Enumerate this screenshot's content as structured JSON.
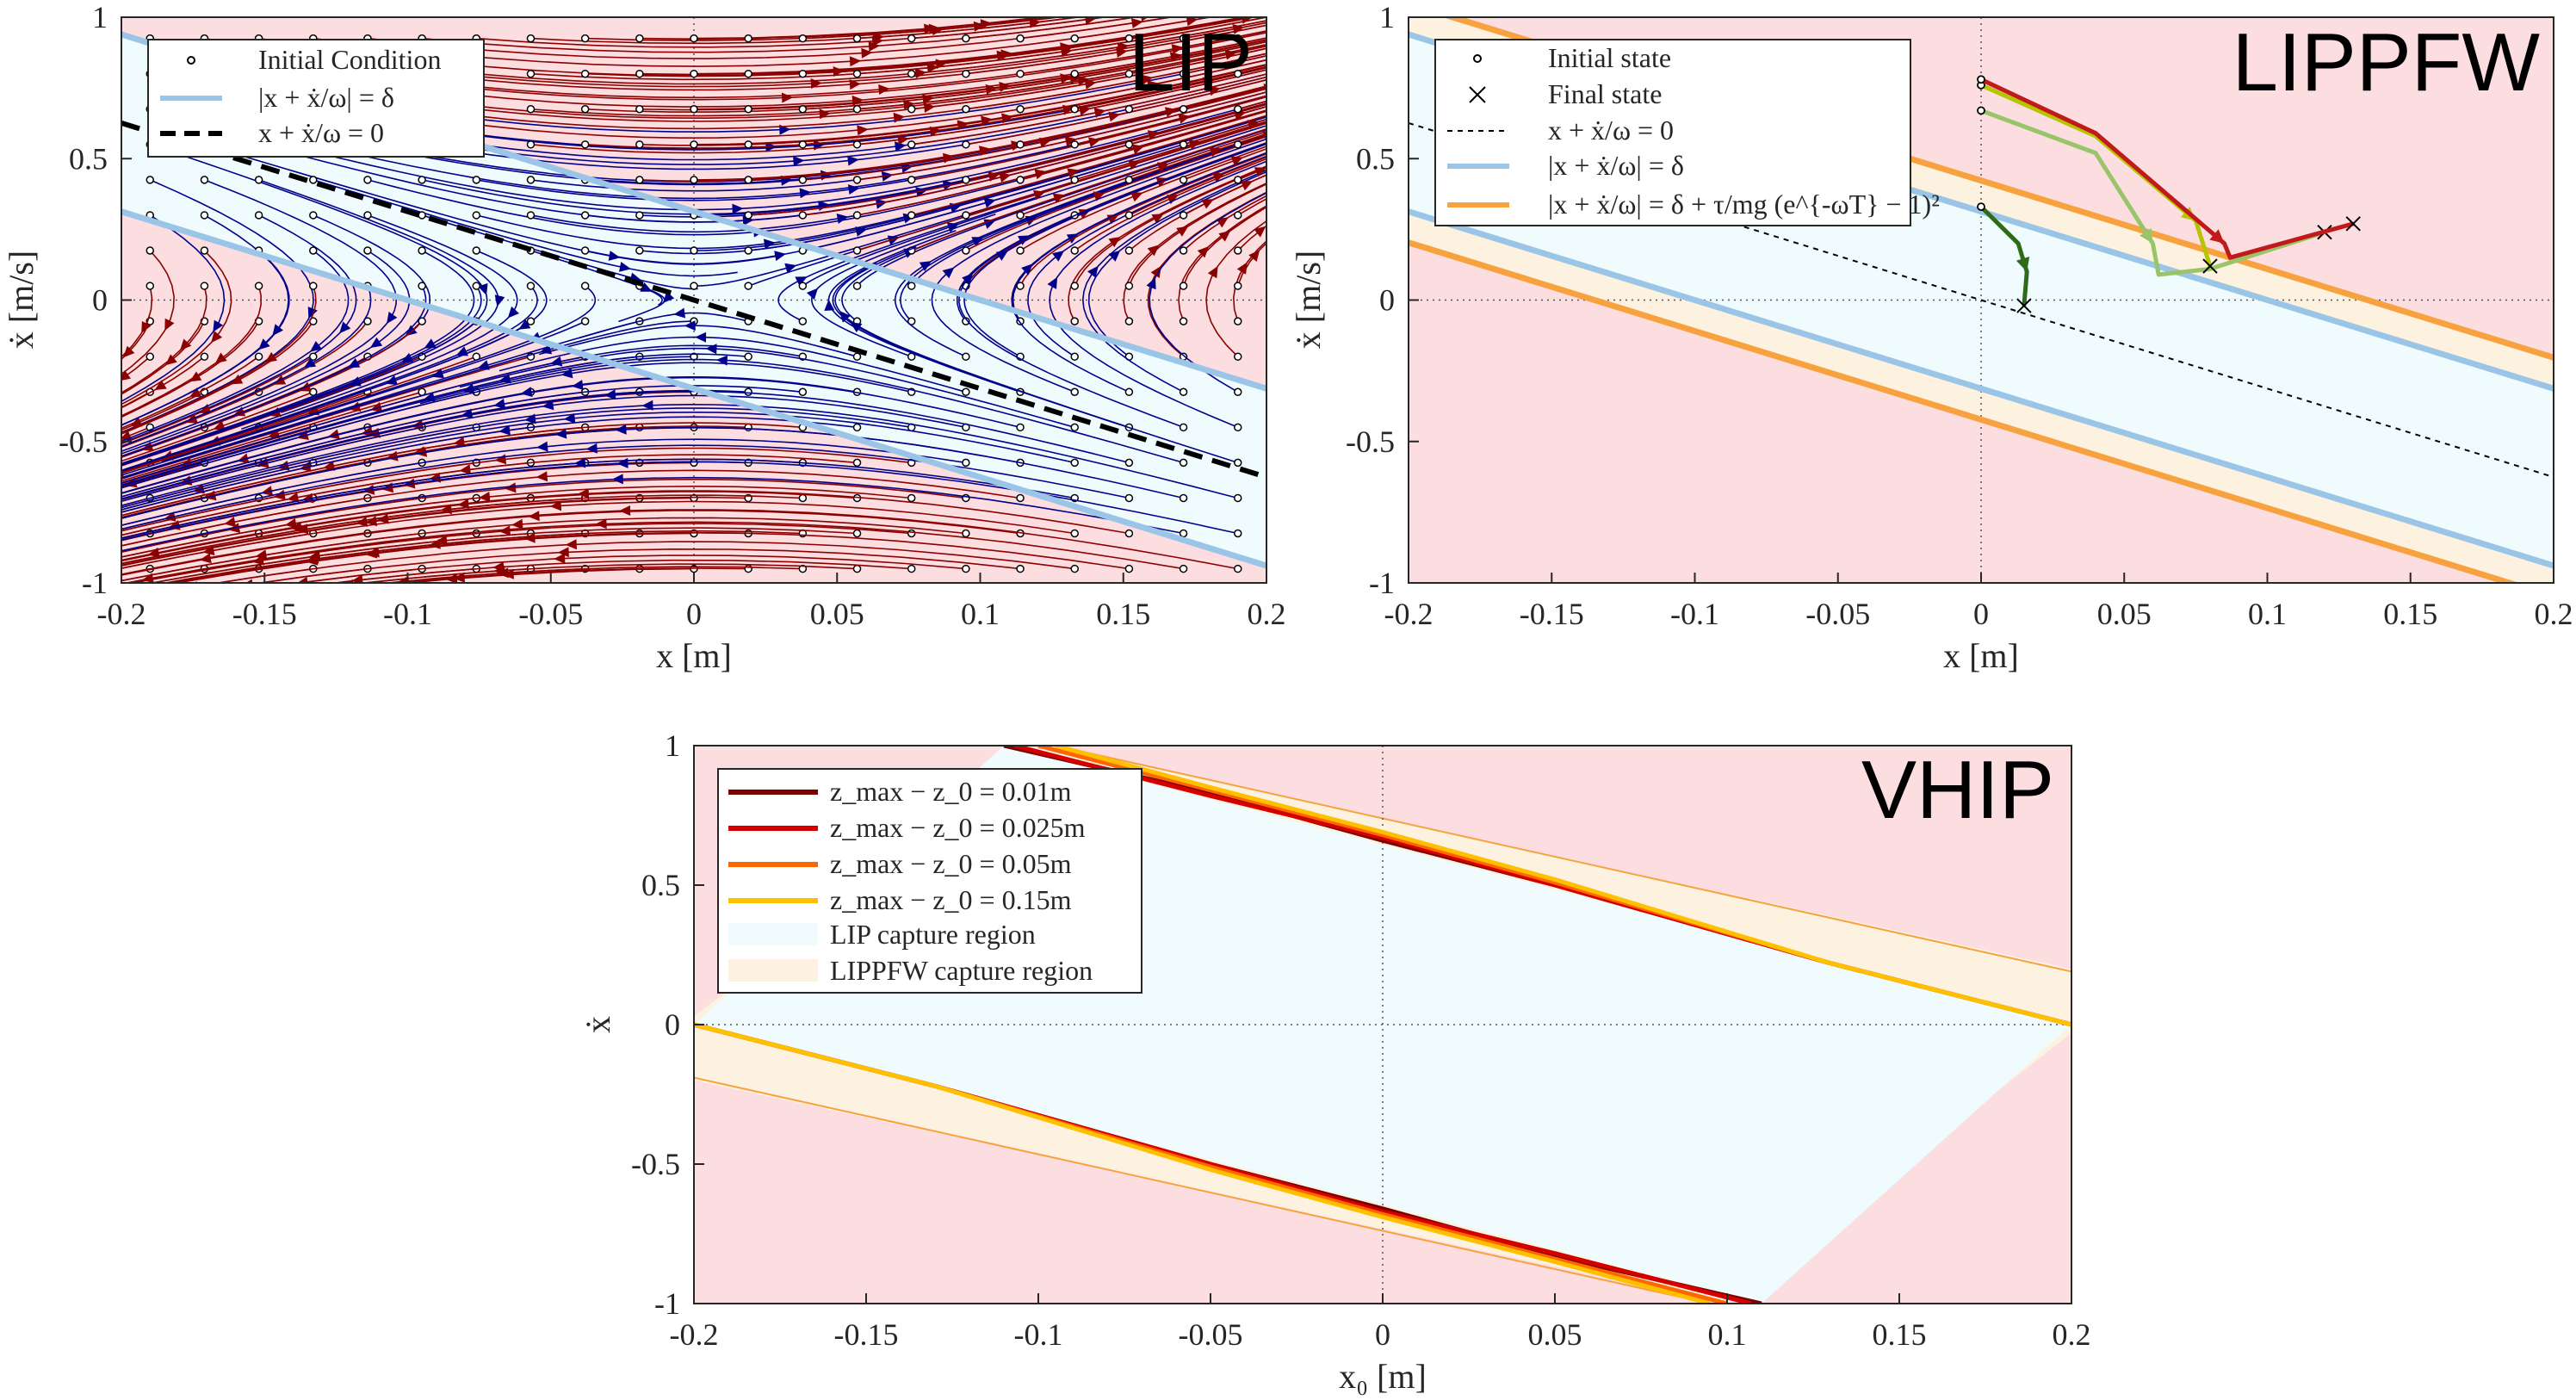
{
  "colors": {
    "capture_fill": "#f0fbfe",
    "unstable_fill": "#fcdde0",
    "lippfw_band": "#fdf1e0",
    "lip_boundary": "#9bc5e6",
    "lippfw_boundary": "#f7a13f",
    "stable_traj": "#00008b",
    "unstable_traj": "#8b0000",
    "dashed_line": "#000000",
    "traj_dark_green": "#2e6a1a",
    "traj_light_green": "#99c46a",
    "traj_olive": "#b7c400",
    "traj_red": "#c01a1a",
    "z_001": "#7b0000",
    "z_0025": "#d40000",
    "z_005": "#ff6600",
    "z_015": "#ffc000"
  },
  "chart_data": [
    {
      "name": "LIP",
      "type": "line",
      "title": "LIP",
      "xlabel": "x [m]",
      "ylabel": "ẋ [m/s]",
      "xlim": [
        -0.2,
        0.2
      ],
      "ylim": [
        -1,
        1
      ],
      "xticks": [
        "-0.2",
        "-0.15",
        "-0.1",
        "-0.05",
        "0",
        "0.05",
        "0.1",
        "0.15",
        "0.2"
      ],
      "yticks": [
        "-1",
        "-0.5",
        "0",
        "0.5",
        "1"
      ],
      "omega": 3.13,
      "delta": 0.1,
      "initial_conditions": {
        "x_min": -0.19,
        "x_max": 0.19,
        "x_step": 0.019,
        "y_min": -0.95,
        "y_max": 0.95,
        "y_step": 0.125
      },
      "legend": [
        {
          "label": "Initial Condition",
          "style": "marker-circle"
        },
        {
          "label": "|x + ẋ/ω| = δ",
          "style": "line-blue"
        },
        {
          "label": "x + ẋ/ω = 0",
          "style": "line-dashed"
        }
      ],
      "legend_position": "top-left",
      "grid": false
    },
    {
      "name": "LIPPFW",
      "type": "line",
      "title": "LIPPFW",
      "xlabel": "x [m]",
      "ylabel": "ẋ [m/s]",
      "xlim": [
        -0.2,
        0.2
      ],
      "ylim": [
        -1,
        1
      ],
      "xticks": [
        "-0.2",
        "-0.15",
        "-0.1",
        "-0.05",
        "0",
        "0.05",
        "0.1",
        "0.15",
        "0.2"
      ],
      "yticks": [
        "-1",
        "-0.5",
        "0",
        "0.5",
        "1"
      ],
      "omega": 3.13,
      "delta": 0.1,
      "band_extra": 0.035,
      "trajectories": [
        {
          "color_key": "traj_dark_green",
          "points": [
            [
              0,
              0.33
            ],
            [
              0.013,
              0.2
            ],
            [
              0.016,
              0.1
            ],
            [
              0.015,
              -0.02
            ]
          ],
          "final": [
            0.015,
            -0.02
          ]
        },
        {
          "color_key": "traj_light_green",
          "points": [
            [
              0,
              0.67
            ],
            [
              0.04,
              0.52
            ],
            [
              0.06,
              0.2
            ],
            [
              0.062,
              0.09
            ],
            [
              0.08,
              0.11
            ],
            [
              0.12,
              0.24
            ]
          ],
          "final": [
            0.12,
            0.24
          ]
        },
        {
          "color_key": "traj_olive",
          "points": [
            [
              0,
              0.76
            ],
            [
              0.04,
              0.58
            ],
            [
              0.075,
              0.28
            ],
            [
              0.08,
              0.12
            ]
          ],
          "final": [
            0.08,
            0.12
          ]
        },
        {
          "color_key": "traj_red",
          "points": [
            [
              0,
              0.78
            ],
            [
              0.04,
              0.59
            ],
            [
              0.085,
              0.2
            ],
            [
              0.087,
              0.15
            ],
            [
              0.13,
              0.27
            ]
          ],
          "final": [
            0.13,
            0.27
          ]
        }
      ],
      "legend": [
        {
          "label": "Initial state",
          "style": "marker-circle"
        },
        {
          "label": "Final state",
          "style": "marker-x"
        },
        {
          "label": "x + ẋ/ω = 0",
          "style": "line-dotted"
        },
        {
          "label": "|x + ẋ/ω| = δ",
          "style": "line-blue"
        },
        {
          "label": "|x + ẋ/ω| = δ + τ/mg (e^{-ωT} − 1)²",
          "style": "line-orange"
        }
      ],
      "legend_position": "top-left",
      "grid": false
    },
    {
      "name": "VHIP",
      "type": "line",
      "title": "VHIP",
      "xlabel": "x₀ [m]",
      "ylabel": "ẋ",
      "xlim": [
        -0.2,
        0.2
      ],
      "ylim": [
        -1,
        1
      ],
      "xticks": [
        "-0.2",
        "-0.15",
        "-0.1",
        "-0.05",
        "0",
        "0.05",
        "0.1",
        "0.15",
        "0.2"
      ],
      "yticks": [
        "-1",
        "-0.5",
        "0",
        "0.5",
        "1"
      ],
      "series": [
        {
          "name": "z_max − z_0 = 0.01m",
          "color_key": "z_001",
          "upper": [
            [
              -0.11,
              1
            ],
            [
              -0.05,
              0.83
            ],
            [
              0,
              0.66
            ],
            [
              0.05,
              0.5
            ],
            [
              0.13,
              0.22
            ],
            [
              0.2,
              0
            ]
          ]
        },
        {
          "name": "z_max − z_0 = 0.025m",
          "color_key": "z_0025",
          "upper": [
            [
              -0.107,
              1
            ],
            [
              -0.05,
              0.82
            ],
            [
              0,
              0.67
            ],
            [
              0.05,
              0.5
            ],
            [
              0.13,
              0.22
            ],
            [
              0.2,
              0
            ]
          ]
        },
        {
          "name": "z_max − z_0 = 0.05m",
          "color_key": "z_005",
          "upper": [
            [
              -0.1,
              1
            ],
            [
              -0.05,
              0.84
            ],
            [
              0,
              0.68
            ],
            [
              0.05,
              0.51
            ],
            [
              0.13,
              0.22
            ],
            [
              0.2,
              0
            ]
          ]
        },
        {
          "name": "z_max − z_0 = 0.15m",
          "color_key": "z_015",
          "upper": [
            [
              -0.095,
              1
            ],
            [
              -0.05,
              0.85
            ],
            [
              0,
              0.69
            ],
            [
              0.05,
              0.52
            ],
            [
              0.13,
              0.22
            ],
            [
              0.2,
              0
            ]
          ]
        }
      ],
      "legend": [
        {
          "label": "z_max − z_0 = 0.01m",
          "style": "line",
          "color_key": "z_001"
        },
        {
          "label": "z_max − z_0 = 0.025m",
          "style": "line",
          "color_key": "z_0025"
        },
        {
          "label": "z_max − z_0 = 0.05m",
          "style": "line",
          "color_key": "z_005"
        },
        {
          "label": "z_max − z_0 = 0.15m",
          "style": "line",
          "color_key": "z_015"
        },
        {
          "label": "LIP capture region",
          "style": "patch",
          "color_key": "capture_fill"
        },
        {
          "label": "LIPPFW capture region",
          "style": "patch",
          "color_key": "lippfw_band"
        }
      ],
      "legend_position": "top-left",
      "grid": false
    }
  ]
}
